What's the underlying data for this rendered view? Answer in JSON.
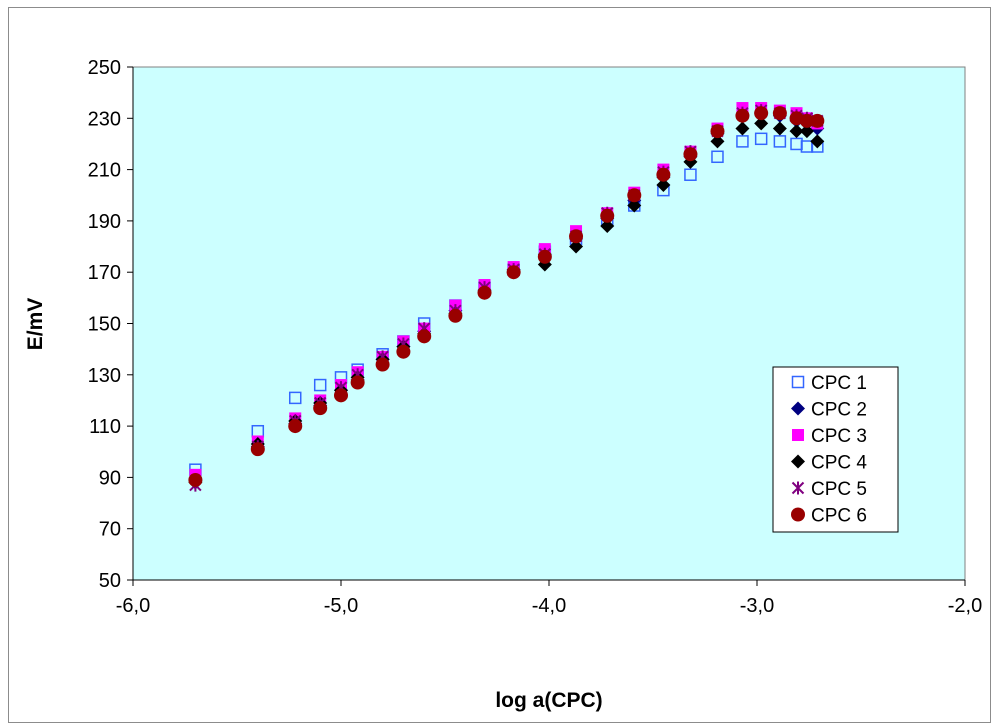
{
  "chart_data": {
    "type": "scatter",
    "title": "",
    "xlabel": "log a(CPC)",
    "ylabel": "E/mV",
    "xlim": [
      -6.0,
      -2.0
    ],
    "ylim": [
      50,
      250
    ],
    "xticks": [
      -6.0,
      -5.0,
      -4.0,
      -3.0,
      -2.0
    ],
    "xtick_labels": [
      "-6,0",
      "-5,0",
      "-4,0",
      "-3,0",
      "-2,0"
    ],
    "yticks": [
      50,
      70,
      90,
      110,
      130,
      150,
      170,
      190,
      210,
      230,
      250
    ],
    "ytick_labels": [
      "50",
      "70",
      "90",
      "110",
      "130",
      "150",
      "170",
      "190",
      "210",
      "230",
      "250"
    ],
    "grid": false,
    "plot_background": "#ccffff",
    "legend_position": "right",
    "series": [
      {
        "name": "CPC 1",
        "marker": "square-open",
        "color": "#3366ff",
        "x": [
          -5.7,
          -5.4,
          -5.22,
          -5.1,
          -5.0,
          -4.92,
          -4.8,
          -4.7,
          -4.6,
          -4.45,
          -4.31,
          -4.17,
          -4.02,
          -3.87,
          -3.72,
          -3.59,
          -3.45,
          -3.32,
          -3.19,
          -3.07,
          -2.98,
          -2.89,
          -2.81,
          -2.76,
          -2.71
        ],
        "y": [
          93,
          108,
          121,
          126,
          129,
          132,
          138,
          143,
          150,
          157,
          164,
          171,
          178,
          183,
          190,
          196,
          202,
          208,
          215,
          221,
          222,
          221,
          220,
          219,
          219
        ]
      },
      {
        "name": "CPC 2",
        "marker": "diamond",
        "color": "#000080",
        "x": [
          -5.7,
          -5.4,
          -5.22,
          -5.1,
          -5.0,
          -4.92,
          -4.8,
          -4.7,
          -4.6,
          -4.45,
          -4.31,
          -4.17,
          -4.02,
          -3.87,
          -3.72,
          -3.59,
          -3.45,
          -3.32,
          -3.19,
          -3.07,
          -2.98,
          -2.89,
          -2.81,
          -2.76,
          -2.71
        ],
        "y": [
          89,
          102,
          111,
          118,
          124,
          128,
          136,
          141,
          147,
          155,
          163,
          171,
          177,
          183,
          191,
          198,
          207,
          215,
          224,
          231,
          232,
          231,
          229,
          228,
          226
        ]
      },
      {
        "name": "CPC 3",
        "marker": "square",
        "color": "#ff00ff",
        "x": [
          -5.7,
          -5.4,
          -5.22,
          -5.1,
          -5.0,
          -4.92,
          -4.8,
          -4.7,
          -4.6,
          -4.45,
          -4.31,
          -4.17,
          -4.02,
          -3.87,
          -3.72,
          -3.59,
          -3.45,
          -3.32,
          -3.19,
          -3.07,
          -2.98,
          -2.89,
          -2.81,
          -2.76,
          -2.71
        ],
        "y": [
          91,
          104,
          113,
          120,
          126,
          131,
          137,
          143,
          148,
          157,
          165,
          172,
          179,
          186,
          193,
          201,
          210,
          217,
          226,
          234,
          234,
          233,
          232,
          230,
          228
        ]
      },
      {
        "name": "CPC 4",
        "marker": "diamond",
        "color": "#000000",
        "x": [
          -5.7,
          -5.4,
          -5.22,
          -5.1,
          -5.0,
          -4.92,
          -4.8,
          -4.7,
          -4.6,
          -4.45,
          -4.31,
          -4.17,
          -4.02,
          -3.87,
          -3.72,
          -3.59,
          -3.45,
          -3.32,
          -3.19,
          -3.07,
          -2.98,
          -2.89,
          -2.81,
          -2.76,
          -2.71
        ],
        "y": [
          88,
          103,
          112,
          119,
          124,
          129,
          136,
          141,
          146,
          154,
          162,
          170,
          173,
          180,
          188,
          196,
          204,
          213,
          221,
          226,
          228,
          226,
          225,
          225,
          221
        ]
      },
      {
        "name": "CPC 5",
        "marker": "asterisk",
        "color": "#800080",
        "x": [
          -5.7,
          -5.4,
          -5.22,
          -5.1,
          -5.0,
          -4.92,
          -4.8,
          -4.7,
          -4.6,
          -4.45,
          -4.31,
          -4.17,
          -4.02,
          -3.87,
          -3.72,
          -3.59,
          -3.45,
          -3.32,
          -3.19,
          -3.07,
          -2.98,
          -2.89,
          -2.81,
          -2.76,
          -2.71
        ],
        "y": [
          87,
          102,
          112,
          119,
          125,
          130,
          137,
          142,
          148,
          155,
          164,
          171,
          177,
          184,
          193,
          200,
          209,
          217,
          225,
          232,
          233,
          232,
          231,
          230,
          229
        ]
      },
      {
        "name": "CPC 6",
        "marker": "circle",
        "color": "#990000",
        "x": [
          -5.7,
          -5.4,
          -5.22,
          -5.1,
          -5.0,
          -4.92,
          -4.8,
          -4.7,
          -4.6,
          -4.45,
          -4.31,
          -4.17,
          -4.02,
          -3.87,
          -3.72,
          -3.59,
          -3.45,
          -3.32,
          -3.19,
          -3.07,
          -2.98,
          -2.89,
          -2.81,
          -2.76,
          -2.71
        ],
        "y": [
          89,
          101,
          110,
          117,
          122,
          127,
          134,
          139,
          145,
          153,
          162,
          170,
          176,
          184,
          192,
          200,
          208,
          216,
          225,
          231,
          232,
          232,
          230,
          229,
          229
        ]
      }
    ]
  }
}
